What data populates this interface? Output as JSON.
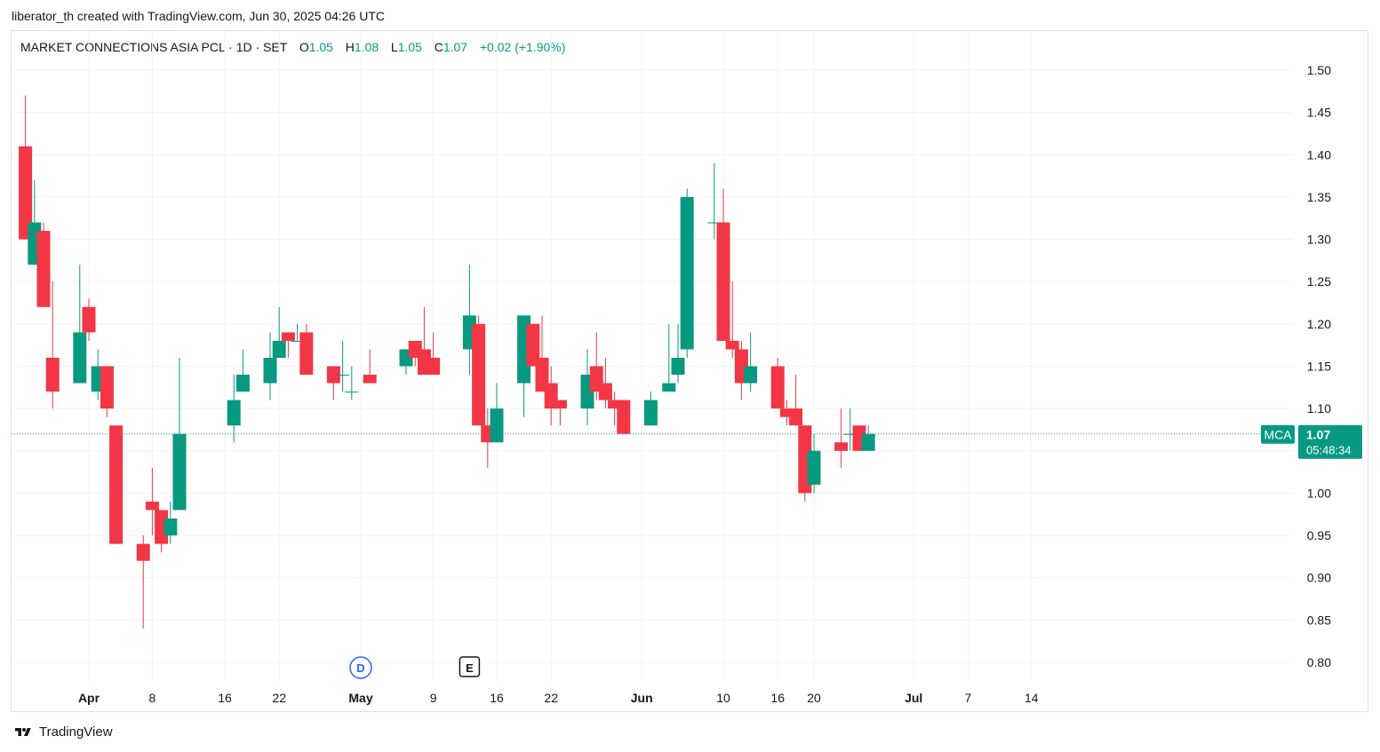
{
  "header": {
    "attribution": "liberator_th created with TradingView.com, Jun 30, 2025 04:26 UTC"
  },
  "legend": {
    "symbol_name": "MARKET CONNECTIONS ASIA PCL · 1D · SET",
    "open_label": "O",
    "open_value": "1.05",
    "high_label": "H",
    "high_value": "1.08",
    "low_label": "L",
    "low_value": "1.05",
    "close_label": "C",
    "close_value": "1.07",
    "change": "+0.02 (+1.90%)"
  },
  "price_tag": {
    "ticker": "MCA",
    "price": "1.07",
    "countdown": "05:48:34"
  },
  "footer": {
    "brand": "TradingView",
    "logo_icon": "tradingview-logo-icon"
  },
  "colors": {
    "up": "#089981",
    "down": "#f23645",
    "grid": "#f0f3fa",
    "text": "#131722"
  },
  "event_markers": [
    {
      "letter": "D",
      "date": "2025-05-01",
      "kind": "dividend"
    },
    {
      "letter": "E",
      "date": "2025-05-13",
      "kind": "earnings"
    }
  ],
  "chart_data": {
    "type": "candlestick",
    "symbol": "MARKET CONNECTIONS ASIA PCL",
    "interval": "1D",
    "exchange": "SET",
    "y_axis": {
      "ticks": [
        0.8,
        0.85,
        0.9,
        0.95,
        1.0,
        1.05,
        1.1,
        1.15,
        1.2,
        1.25,
        1.3,
        1.35,
        1.4,
        1.45,
        1.5
      ],
      "range": [
        0.78,
        1.53
      ]
    },
    "x_axis": {
      "tick_labels": [
        "Apr",
        "8",
        "16",
        "22",
        "May",
        "9",
        "16",
        "22",
        "Jun",
        "10",
        "16",
        "20",
        "Jul",
        "7",
        "14"
      ]
    },
    "grid": true,
    "last_price": 1.07,
    "candles": [
      {
        "date": "2025-03-25",
        "open": 1.41,
        "high": 1.47,
        "low": 1.3,
        "close": 1.3
      },
      {
        "date": "2025-03-26",
        "open": 1.27,
        "high": 1.37,
        "low": 1.27,
        "close": 1.32
      },
      {
        "date": "2025-03-27",
        "open": 1.31,
        "high": 1.32,
        "low": 1.22,
        "close": 1.22
      },
      {
        "date": "2025-03-28",
        "open": 1.16,
        "high": 1.25,
        "low": 1.1,
        "close": 1.12
      },
      {
        "date": "2025-03-31",
        "open": 1.13,
        "high": 1.27,
        "low": 1.13,
        "close": 1.19
      },
      {
        "date": "2025-04-01",
        "open": 1.22,
        "high": 1.23,
        "low": 1.18,
        "close": 1.19
      },
      {
        "date": "2025-04-02",
        "open": 1.12,
        "high": 1.17,
        "low": 1.11,
        "close": 1.15
      },
      {
        "date": "2025-04-03",
        "open": 1.15,
        "high": 1.15,
        "low": 1.09,
        "close": 1.1
      },
      {
        "date": "2025-04-04",
        "open": 1.08,
        "high": 1.08,
        "low": 0.94,
        "close": 0.94
      },
      {
        "date": "2025-04-07",
        "open": 0.94,
        "high": 0.95,
        "low": 0.84,
        "close": 0.92
      },
      {
        "date": "2025-04-08",
        "open": 0.99,
        "high": 1.03,
        "low": 0.95,
        "close": 0.98
      },
      {
        "date": "2025-04-09",
        "open": 0.98,
        "high": 0.98,
        "low": 0.93,
        "close": 0.94
      },
      {
        "date": "2025-04-10",
        "open": 0.95,
        "high": 0.99,
        "low": 0.94,
        "close": 0.97
      },
      {
        "date": "2025-04-11",
        "open": 0.98,
        "high": 1.16,
        "low": 0.98,
        "close": 1.07
      },
      {
        "date": "2025-04-17",
        "open": 1.08,
        "high": 1.14,
        "low": 1.06,
        "close": 1.11
      },
      {
        "date": "2025-04-18",
        "open": 1.12,
        "high": 1.17,
        "low": 1.12,
        "close": 1.14
      },
      {
        "date": "2025-04-21",
        "open": 1.13,
        "high": 1.19,
        "low": 1.11,
        "close": 1.16
      },
      {
        "date": "2025-04-22",
        "open": 1.16,
        "high": 1.22,
        "low": 1.16,
        "close": 1.18
      },
      {
        "date": "2025-04-23",
        "open": 1.19,
        "high": 1.19,
        "low": 1.16,
        "close": 1.18
      },
      {
        "date": "2025-04-24",
        "open": 1.18,
        "high": 1.2,
        "low": 1.18,
        "close": 1.18
      },
      {
        "date": "2025-04-25",
        "open": 1.19,
        "high": 1.2,
        "low": 1.14,
        "close": 1.14
      },
      {
        "date": "2025-04-28",
        "open": 1.15,
        "high": 1.15,
        "low": 1.11,
        "close": 1.13
      },
      {
        "date": "2025-04-29",
        "open": 1.14,
        "high": 1.18,
        "low": 1.12,
        "close": 1.14
      },
      {
        "date": "2025-04-30",
        "open": 1.12,
        "high": 1.15,
        "low": 1.11,
        "close": 1.12
      },
      {
        "date": "2025-05-02",
        "open": 1.14,
        "high": 1.17,
        "low": 1.13,
        "close": 1.13
      },
      {
        "date": "2025-05-06",
        "open": 1.15,
        "high": 1.17,
        "low": 1.14,
        "close": 1.17
      },
      {
        "date": "2025-05-07",
        "open": 1.18,
        "high": 1.18,
        "low": 1.15,
        "close": 1.16
      },
      {
        "date": "2025-05-08",
        "open": 1.17,
        "high": 1.22,
        "low": 1.14,
        "close": 1.14
      },
      {
        "date": "2025-05-09",
        "open": 1.16,
        "high": 1.19,
        "low": 1.14,
        "close": 1.14
      },
      {
        "date": "2025-05-13",
        "open": 1.17,
        "high": 1.27,
        "low": 1.14,
        "close": 1.21
      },
      {
        "date": "2025-05-14",
        "open": 1.2,
        "high": 1.21,
        "low": 1.08,
        "close": 1.08
      },
      {
        "date": "2025-05-15",
        "open": 1.08,
        "high": 1.1,
        "low": 1.03,
        "close": 1.06
      },
      {
        "date": "2025-05-16",
        "open": 1.06,
        "high": 1.13,
        "low": 1.06,
        "close": 1.1
      },
      {
        "date": "2025-05-19",
        "open": 1.13,
        "high": 1.21,
        "low": 1.09,
        "close": 1.21
      },
      {
        "date": "2025-05-20",
        "open": 1.2,
        "high": 1.2,
        "low": 1.15,
        "close": 1.15
      },
      {
        "date": "2025-05-21",
        "open": 1.16,
        "high": 1.21,
        "low": 1.12,
        "close": 1.12
      },
      {
        "date": "2025-05-22",
        "open": 1.13,
        "high": 1.15,
        "low": 1.08,
        "close": 1.1
      },
      {
        "date": "2025-05-23",
        "open": 1.11,
        "high": 1.11,
        "low": 1.08,
        "close": 1.1
      },
      {
        "date": "2025-05-26",
        "open": 1.1,
        "high": 1.17,
        "low": 1.08,
        "close": 1.14
      },
      {
        "date": "2025-05-27",
        "open": 1.15,
        "high": 1.19,
        "low": 1.11,
        "close": 1.12
      },
      {
        "date": "2025-05-28",
        "open": 1.13,
        "high": 1.16,
        "low": 1.1,
        "close": 1.11
      },
      {
        "date": "2025-05-29",
        "open": 1.11,
        "high": 1.12,
        "low": 1.08,
        "close": 1.1
      },
      {
        "date": "2025-05-30",
        "open": 1.11,
        "high": 1.11,
        "low": 1.07,
        "close": 1.07
      },
      {
        "date": "2025-06-02",
        "open": 1.08,
        "high": 1.12,
        "low": 1.08,
        "close": 1.11
      },
      {
        "date": "2025-06-04",
        "open": 1.12,
        "high": 1.2,
        "low": 1.12,
        "close": 1.13
      },
      {
        "date": "2025-06-05",
        "open": 1.14,
        "high": 1.2,
        "low": 1.13,
        "close": 1.16
      },
      {
        "date": "2025-06-06",
        "open": 1.17,
        "high": 1.36,
        "low": 1.16,
        "close": 1.35
      },
      {
        "date": "2025-06-09",
        "open": 1.32,
        "high": 1.39,
        "low": 1.3,
        "close": 1.32
      },
      {
        "date": "2025-06-10",
        "open": 1.32,
        "high": 1.36,
        "low": 1.18,
        "close": 1.18
      },
      {
        "date": "2025-06-11",
        "open": 1.18,
        "high": 1.25,
        "low": 1.16,
        "close": 1.17
      },
      {
        "date": "2025-06-12",
        "open": 1.17,
        "high": 1.18,
        "low": 1.11,
        "close": 1.13
      },
      {
        "date": "2025-06-13",
        "open": 1.13,
        "high": 1.19,
        "low": 1.12,
        "close": 1.15
      },
      {
        "date": "2025-06-16",
        "open": 1.15,
        "high": 1.16,
        "low": 1.1,
        "close": 1.1
      },
      {
        "date": "2025-06-17",
        "open": 1.1,
        "high": 1.11,
        "low": 1.08,
        "close": 1.09
      },
      {
        "date": "2025-06-18",
        "open": 1.1,
        "high": 1.14,
        "low": 1.08,
        "close": 1.08
      },
      {
        "date": "2025-06-19",
        "open": 1.08,
        "high": 1.08,
        "low": 0.99,
        "close": 1.0
      },
      {
        "date": "2025-06-20",
        "open": 1.01,
        "high": 1.07,
        "low": 1.0,
        "close": 1.05
      },
      {
        "date": "2025-06-23",
        "open": 1.06,
        "high": 1.1,
        "low": 1.03,
        "close": 1.05
      },
      {
        "date": "2025-06-24",
        "open": 1.07,
        "high": 1.1,
        "low": 1.05,
        "close": 1.07
      },
      {
        "date": "2025-06-25",
        "open": 1.08,
        "high": 1.08,
        "low": 1.05,
        "close": 1.05
      },
      {
        "date": "2025-06-26",
        "open": 1.05,
        "high": 1.08,
        "low": 1.05,
        "close": 1.07
      }
    ]
  }
}
